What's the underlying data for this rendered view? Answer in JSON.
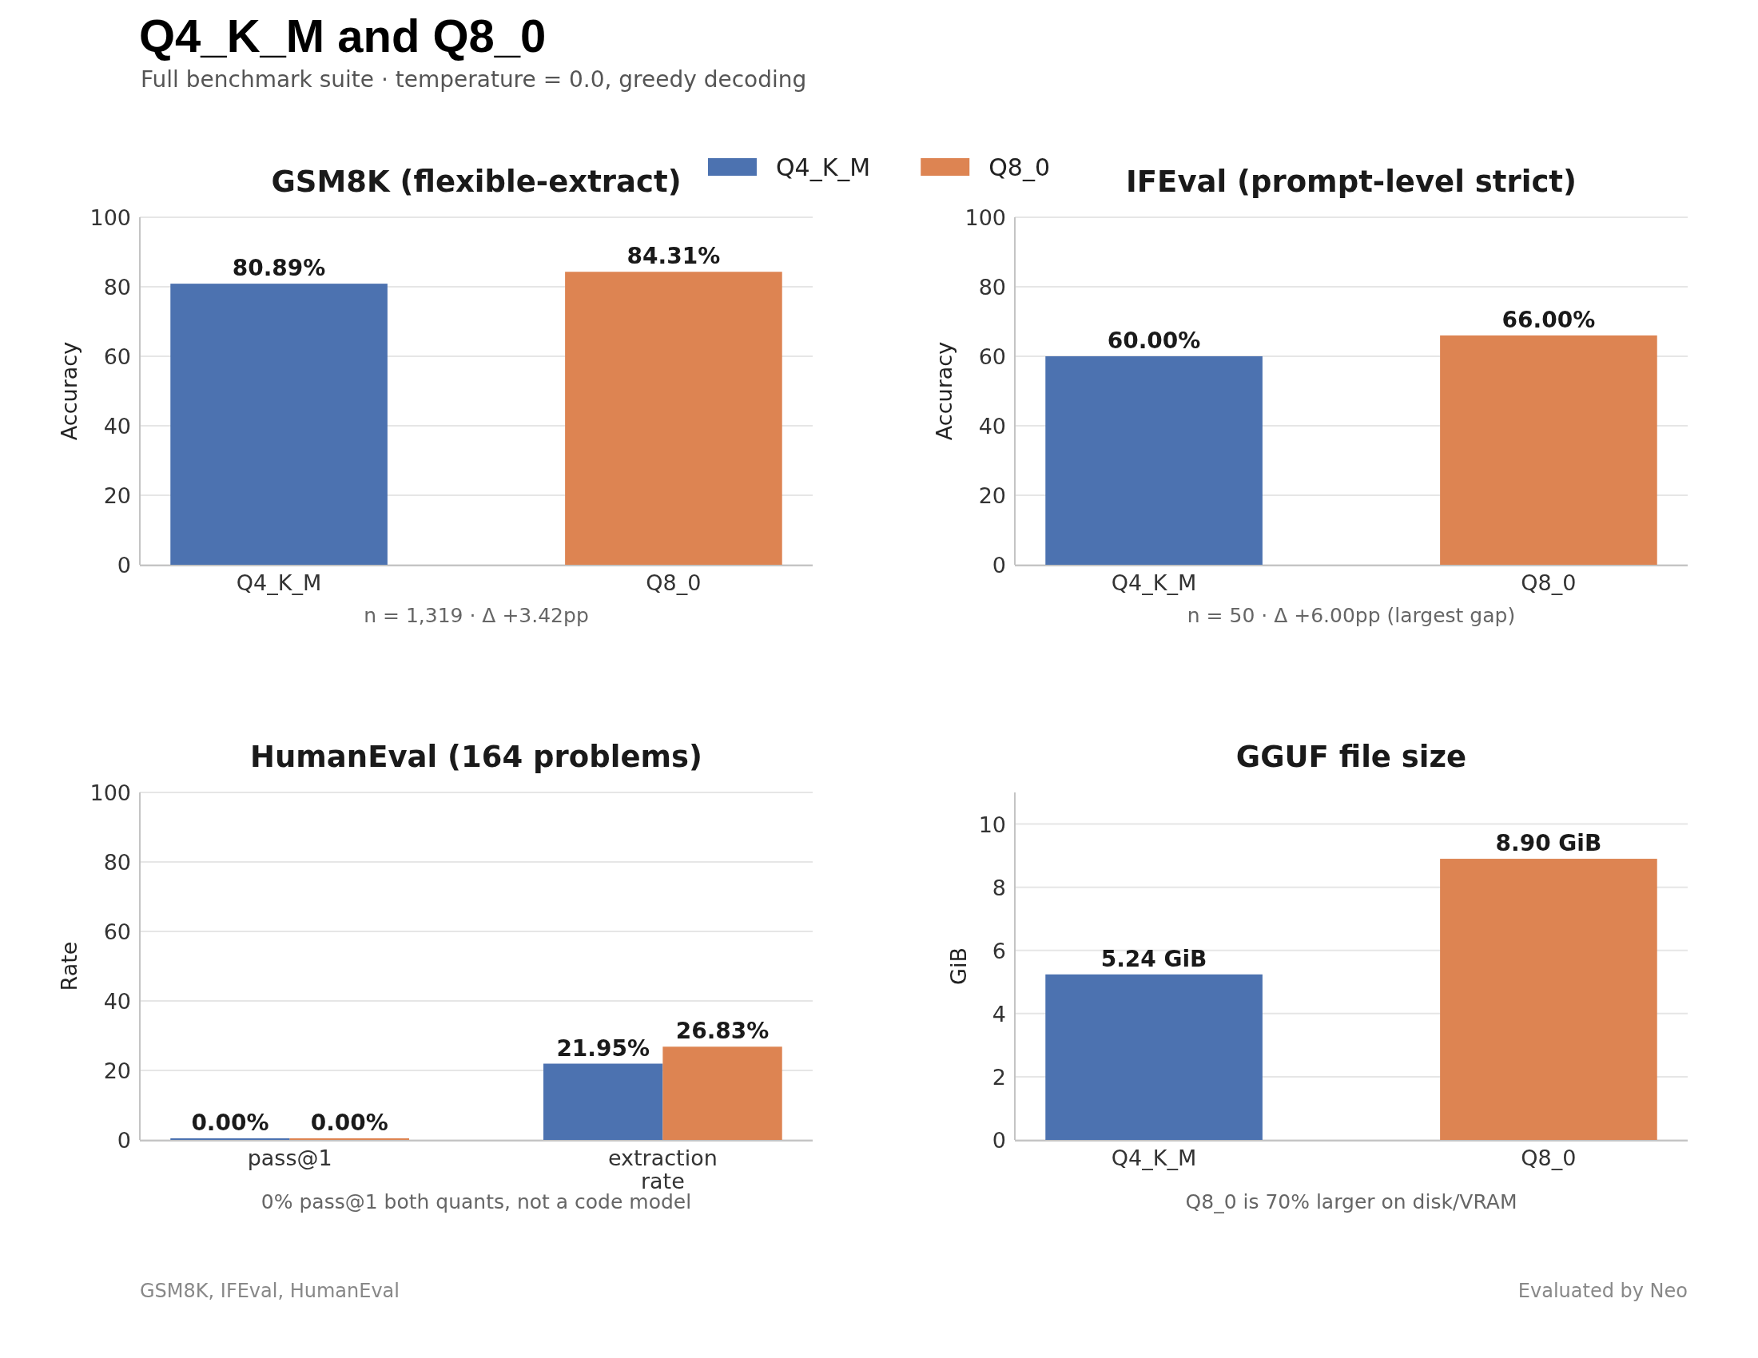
{
  "chart_data": [
    {
      "type": "other",
      "title": "Q4_K_M and Q8_0",
      "subtitle": "Full benchmark suite · temperature = 0.0, greedy decoding",
      "annotations": [
        "GSM8K, IFEval, HumanEval",
        "Evaluated by Neo"
      ]
    },
    {
      "type": "bar",
      "title": "GSM8K (flexible-extract)",
      "ylabel": "Accuracy",
      "categories": [
        "Q4_K_M",
        "Q8_0"
      ],
      "values": [
        80.89,
        84.31
      ],
      "colors": [
        "#4c72b0",
        "#dd8452"
      ],
      "value_labels": [
        "80.89%",
        "84.31%"
      ],
      "ylim": [
        0,
        100
      ],
      "yticks": [
        0,
        20,
        40,
        60,
        80,
        100
      ],
      "grid": "y",
      "annotations": [
        "n = 1,319 · Δ +3.42pp"
      ]
    },
    {
      "type": "bar",
      "title": "IFEval (prompt-level strict)",
      "ylabel": "Accuracy",
      "categories": [
        "Q4_K_M",
        "Q8_0"
      ],
      "values": [
        60.0,
        66.0
      ],
      "colors": [
        "#4c72b0",
        "#dd8452"
      ],
      "value_labels": [
        "60.00%",
        "66.00%"
      ],
      "ylim": [
        0,
        100
      ],
      "yticks": [
        0,
        20,
        40,
        60,
        80,
        100
      ],
      "grid": "y",
      "annotations": [
        "n = 50 · Δ +6.00pp (largest gap)"
      ]
    },
    {
      "type": "bar",
      "title": "HumanEval (164 problems)",
      "ylabel": "Rate",
      "categories": [
        "pass@1",
        "extraction rate"
      ],
      "series": [
        {
          "name": "Q4_K_M",
          "color": "#4c72b0",
          "values": [
            0,
            21.95
          ],
          "value_labels": [
            "0.00%",
            "21.95%"
          ]
        },
        {
          "name": "Q8_0",
          "color": "#dd8452",
          "values": [
            0,
            26.83
          ],
          "value_labels": [
            "0.00%",
            "26.83%"
          ]
        }
      ],
      "ylim": [
        0,
        100
      ],
      "yticks": [
        0,
        20,
        40,
        60,
        80,
        100
      ],
      "grid": "y",
      "legend": "top",
      "annotations": [
        "0% pass@1 both quants, not a code model"
      ]
    },
    {
      "type": "bar",
      "title": "GGUF file size",
      "ylabel": "GiB",
      "categories": [
        "Q4_K_M",
        "Q8_0"
      ],
      "values": [
        5.24,
        8.9
      ],
      "colors": [
        "#4c72b0",
        "#dd8452"
      ],
      "value_labels": [
        "5.24 GiB",
        "8.90 GiB"
      ],
      "ylim": [
        0,
        11
      ],
      "yticks": [
        0,
        2,
        4,
        6,
        8,
        10
      ],
      "grid": "y",
      "annotations": [
        "Q8_0 is 70% larger on disk/VRAM"
      ]
    }
  ]
}
